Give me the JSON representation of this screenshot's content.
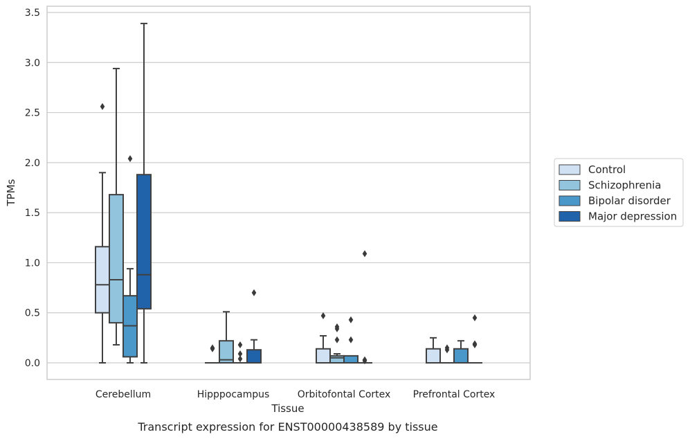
{
  "caption": "Transcript expression for ENST00000438589 by tissue",
  "chart_data": {
    "type": "box",
    "title": "",
    "xlabel": "Tissue",
    "ylabel": "TPMs",
    "ylim": [
      -0.16,
      3.57
    ],
    "yticks": [
      "0.0",
      "0.5",
      "1.0",
      "1.5",
      "2.0",
      "2.5",
      "3.0",
      "3.5"
    ],
    "ytick_values": [
      0,
      0.5,
      1.0,
      1.5,
      2.0,
      2.5,
      3.0,
      3.5
    ],
    "grid": "horizontal",
    "legend_position": "right",
    "categories": [
      "Cerebellum",
      "Hipppocampus",
      "Orbitofontal Cortex",
      "Prefrontal Cortex"
    ],
    "series": [
      {
        "name": "Control",
        "color": "#cfe1f2",
        "boxes": [
          {
            "whislo": 0.0,
            "q1": 0.5,
            "med": 0.78,
            "q3": 1.16,
            "whishi": 1.9,
            "fliers": [
              2.56
            ]
          },
          {
            "whislo": 0.0,
            "q1": 0.0,
            "med": 0.0,
            "q3": 0.0,
            "whishi": 0.0,
            "fliers": [
              0.14,
              0.15
            ]
          },
          {
            "whislo": 0.0,
            "q1": 0.0,
            "med": 0.0,
            "q3": 0.14,
            "whishi": 0.27,
            "fliers": [
              0.47
            ]
          },
          {
            "whislo": 0.0,
            "q1": 0.0,
            "med": 0.0,
            "q3": 0.14,
            "whishi": 0.25,
            "fliers": []
          }
        ]
      },
      {
        "name": "Schizophrenia",
        "color": "#93c4de",
        "boxes": [
          {
            "whislo": 0.18,
            "q1": 0.4,
            "med": 0.83,
            "q3": 1.68,
            "whishi": 2.94,
            "fliers": []
          },
          {
            "whislo": 0.0,
            "q1": 0.0,
            "med": 0.03,
            "q3": 0.22,
            "whishi": 0.51,
            "fliers": []
          },
          {
            "whislo": 0.0,
            "q1": 0.0,
            "med": 0.05,
            "q3": 0.07,
            "whishi": 0.09,
            "fliers": [
              0.23,
              0.34,
              0.36
            ]
          },
          {
            "whislo": 0.0,
            "q1": 0.0,
            "med": 0.0,
            "q3": 0.0,
            "whishi": 0.0,
            "fliers": [
              0.13,
              0.15
            ]
          }
        ]
      },
      {
        "name": "Bipolar disorder",
        "color": "#4a98c9",
        "boxes": [
          {
            "whislo": 0.0,
            "q1": 0.06,
            "med": 0.37,
            "q3": 0.67,
            "whishi": 0.94,
            "fliers": [
              2.04
            ]
          },
          {
            "whislo": 0.0,
            "q1": 0.0,
            "med": 0.0,
            "q3": 0.0,
            "whishi": 0.0,
            "fliers": [
              0.04,
              0.09,
              0.18
            ]
          },
          {
            "whislo": 0.0,
            "q1": 0.0,
            "med": 0.0,
            "q3": 0.07,
            "whishi": 0.07,
            "fliers": [
              0.23,
              0.43
            ]
          },
          {
            "whislo": 0.0,
            "q1": 0.0,
            "med": 0.0,
            "q3": 0.14,
            "whishi": 0.22,
            "fliers": []
          }
        ]
      },
      {
        "name": "Major depression",
        "color": "#2163aa",
        "boxes": [
          {
            "whislo": 0.0,
            "q1": 0.54,
            "med": 0.88,
            "q3": 1.88,
            "whishi": 3.39,
            "fliers": []
          },
          {
            "whislo": 0.0,
            "q1": 0.0,
            "med": 0.0,
            "q3": 0.13,
            "whishi": 0.23,
            "fliers": [
              0.7
            ]
          },
          {
            "whislo": 0.0,
            "q1": 0.0,
            "med": 0.0,
            "q3": 0.0,
            "whishi": 0.0,
            "fliers": [
              0.02,
              0.03,
              1.09
            ]
          },
          {
            "whislo": 0.0,
            "q1": 0.0,
            "med": 0.0,
            "q3": 0.0,
            "whishi": 0.0,
            "fliers": [
              0.18,
              0.19,
              0.45
            ]
          }
        ]
      }
    ]
  }
}
